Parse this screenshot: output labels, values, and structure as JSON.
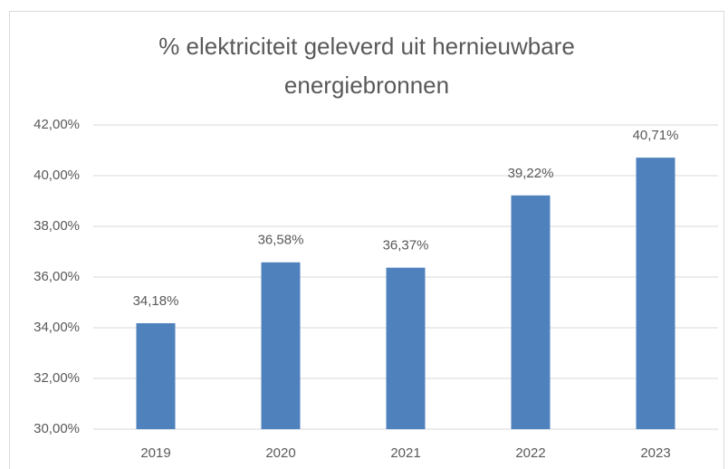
{
  "chart_data": {
    "type": "bar",
    "title": "% elektriciteit geleverd uit hernieuwbare energiebronnen",
    "categories": [
      "2019",
      "2020",
      "2021",
      "2022",
      "2023"
    ],
    "values": [
      34.18,
      36.58,
      36.37,
      39.22,
      40.71
    ],
    "value_labels": [
      "34,18%",
      "36,58%",
      "36,37%",
      "39,22%",
      "40,71%"
    ],
    "color": "#4f81bd",
    "ylim": [
      30,
      42
    ],
    "yticks": [
      {
        "value": 30,
        "label": "30,00%"
      },
      {
        "value": 32,
        "label": "32,00%"
      },
      {
        "value": 34,
        "label": "34,00%"
      },
      {
        "value": 36,
        "label": "36,00%"
      },
      {
        "value": 38,
        "label": "38,00%"
      },
      {
        "value": 40,
        "label": "40,00%"
      },
      {
        "value": 42,
        "label": "42,00%"
      }
    ],
    "grid": true
  }
}
